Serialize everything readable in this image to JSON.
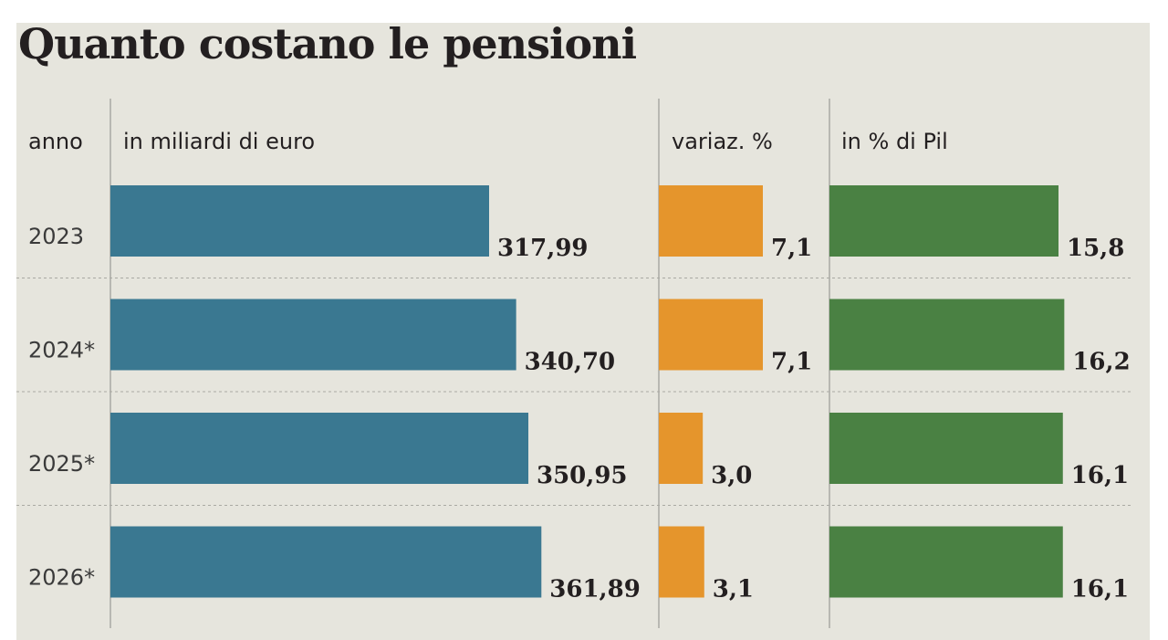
{
  "chart_data": {
    "type": "bar",
    "title": "Quanto costano le pensioni",
    "category_label": "anno",
    "categories": [
      "2023",
      "2024*",
      "2025*",
      "2026*"
    ],
    "series": [
      {
        "name": "in miliardi di euro",
        "values": [
          317.99,
          340.7,
          350.95,
          361.89
        ],
        "labels": [
          "317,99",
          "340,70",
          "350,95",
          "361,89"
        ],
        "color": "#3a7891"
      },
      {
        "name": "variaz. %",
        "values": [
          7.1,
          7.1,
          3.0,
          3.1
        ],
        "labels": [
          "7,1",
          "7,1",
          "3,0",
          "3,1"
        ],
        "color": "#e5952c"
      },
      {
        "name": "in % di Pil",
        "values": [
          15.8,
          16.2,
          16.1,
          16.1
        ],
        "labels": [
          "15,8",
          "16,2",
          "16,1",
          "16,1"
        ],
        "color": "#4a8143"
      }
    ],
    "orientation": "horizontal",
    "grid": false,
    "legend": "none"
  }
}
